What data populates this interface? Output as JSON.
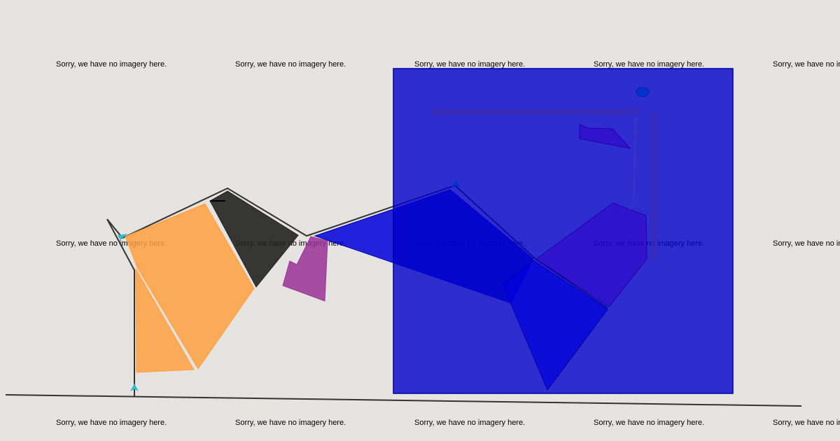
{
  "map": {
    "background_color": "#e5e3df",
    "tile_message": "Sorry, we have no imagery here.",
    "tiles": [
      {
        "id": "r1c1"
      },
      {
        "id": "r1c2"
      },
      {
        "id": "r1c3"
      },
      {
        "id": "r1c4"
      },
      {
        "id": "r1c5"
      },
      {
        "id": "r2c1"
      },
      {
        "id": "r2c2"
      },
      {
        "id": "r2c3"
      },
      {
        "id": "r2c4"
      },
      {
        "id": "r2c5"
      },
      {
        "id": "r3c1"
      },
      {
        "id": "r3c2"
      },
      {
        "id": "r3c3"
      },
      {
        "id": "r3c4"
      },
      {
        "id": "r3c5"
      }
    ]
  },
  "overlays": {
    "colors": {
      "blue_fill": "#0000cc",
      "blue_stroke": "#0000aa",
      "orange_fill": "#ffa040",
      "dark_fill": "#222222",
      "purple_fill": "#993399",
      "indigo_fill": "#3300cc",
      "line": "#333333",
      "cyan_marker": "#33bbcc",
      "blue_marker": "#0033cc"
    },
    "shape_names": [
      "blue-rectangle-overlay",
      "orange-polygon-left",
      "orange-polygon-right",
      "dark-polygon",
      "purple-polygon",
      "blue-triangle-polygon",
      "blue-lower-polygon",
      "indigo-polygon",
      "small-indigo-polygon",
      "blue-marker-dot",
      "polyline-baseline",
      "polyline-outline"
    ]
  }
}
